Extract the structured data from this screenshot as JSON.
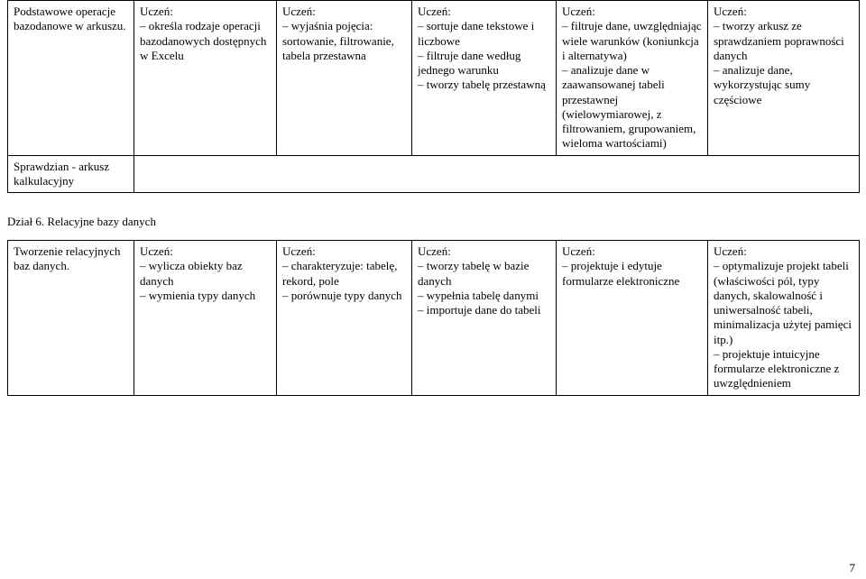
{
  "table1": {
    "rows": [
      {
        "c1": "Podstawowe operacje bazodanowe w arkuszu.",
        "c2": "Uczeń:\n– określa rodzaje operacji bazodanowych dostępnych w Excelu",
        "c3": "Uczeń:\n– wyjaśnia pojęcia: sortowanie, filtrowanie, tabela przestawna",
        "c4": "Uczeń:\n– sortuje dane tekstowe i liczbowe\n– filtruje dane według jednego warunku\n– tworzy tabelę przestawną",
        "c5": "Uczeń:\n– filtruje dane, uwzględniając wiele warunków (koniunkcja i alternatywa)\n– analizuje dane w zaawansowanej tabeli przestawnej (wielowymiarowej, z filtrowaniem, grupowaniem, wieloma wartościami)",
        "c6": "Uczeń:\n– tworzy arkusz ze sprawdzaniem poprawności danych\n– analizuje dane, wykorzystując sumy częściowe"
      },
      {
        "c1": "Sprawdzian - arkusz kalkulacyjny",
        "c2": "",
        "c3": "",
        "c4": "",
        "c5": "",
        "c6": ""
      }
    ]
  },
  "section_title": "Dział 6. Relacyjne bazy danych",
  "table2": {
    "rows": [
      {
        "c1": "Tworzenie relacyjnych baz danych.",
        "c2": "Uczeń:\n– wylicza obiekty baz danych\n– wymienia typy danych",
        "c3": "Uczeń:\n– charakteryzuje: tabelę, rekord, pole\n– porównuje typy danych",
        "c4": "Uczeń:\n– tworzy tabelę w bazie danych\n– wypełnia tabelę danymi\n– importuje dane do tabeli",
        "c5": "Uczeń:\n– projektuje i edytuje formularze elektroniczne",
        "c6": "Uczeń:\n– optymalizuje projekt tabeli (właściwości pól, typy danych, skalowalność i uniwersalność tabeli, minimalizacja użytej pamięci itp.)\n– projektuje intuicyjne formularze elektroniczne z uwzględnieniem"
      }
    ]
  },
  "page_number": "7"
}
